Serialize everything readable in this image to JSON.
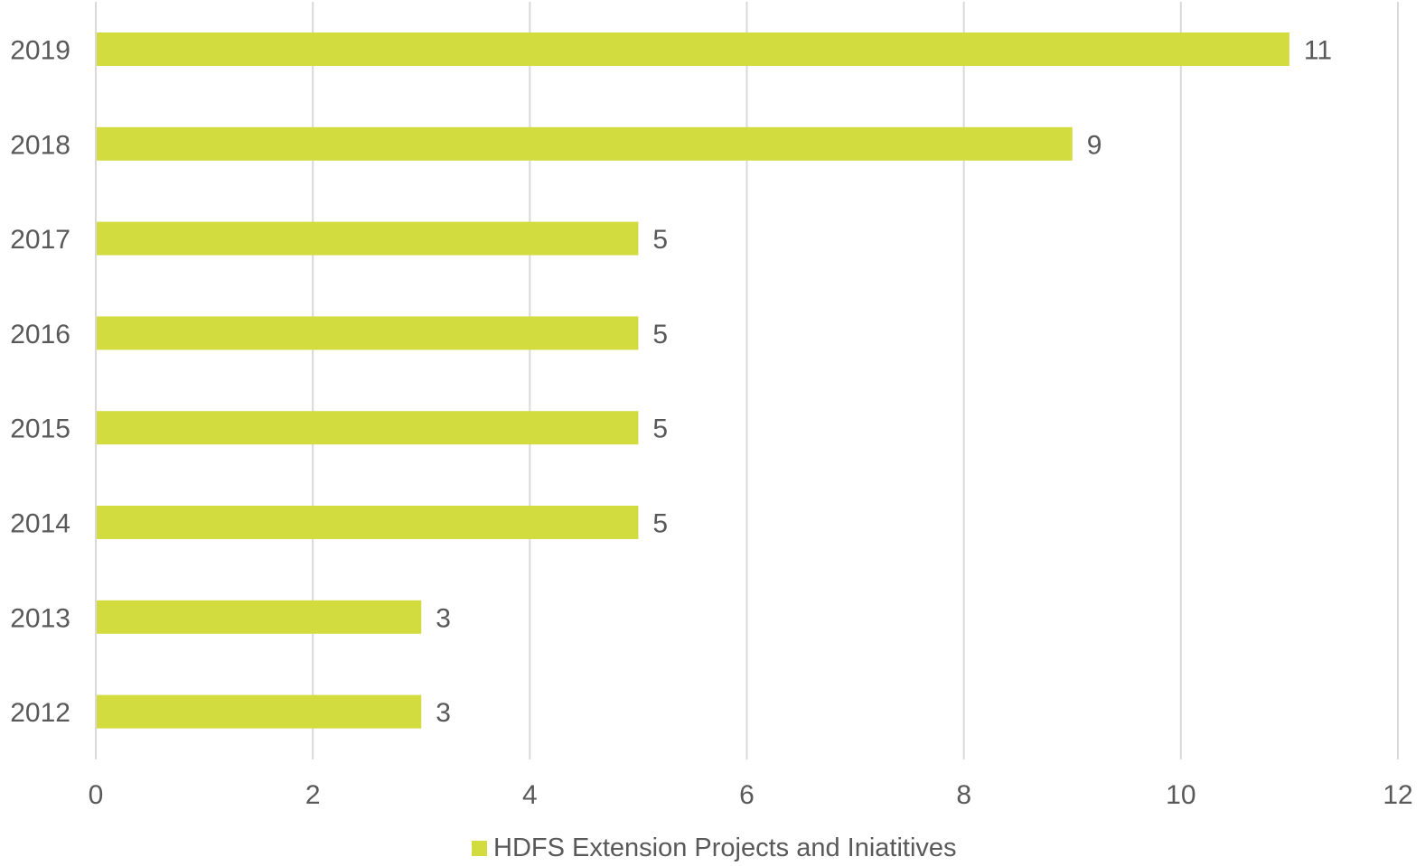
{
  "chart_data": {
    "type": "bar",
    "orientation": "horizontal",
    "categories": [
      "2019",
      "2018",
      "2017",
      "2016",
      "2015",
      "2014",
      "2013",
      "2012"
    ],
    "series": [
      {
        "name": "HDFS Extension Projects and Iniatitives",
        "values": [
          11,
          9,
          5,
          5,
          5,
          5,
          3,
          3
        ],
        "color": "#d2dc3f"
      }
    ],
    "title": "",
    "xlabel": "",
    "ylabel": "",
    "xlim": [
      0,
      12
    ],
    "x_ticks": [
      "0",
      "2",
      "4",
      "6",
      "8",
      "10",
      "12"
    ],
    "grid": "vertical",
    "data_labels": true,
    "legend_position": "bottom"
  }
}
